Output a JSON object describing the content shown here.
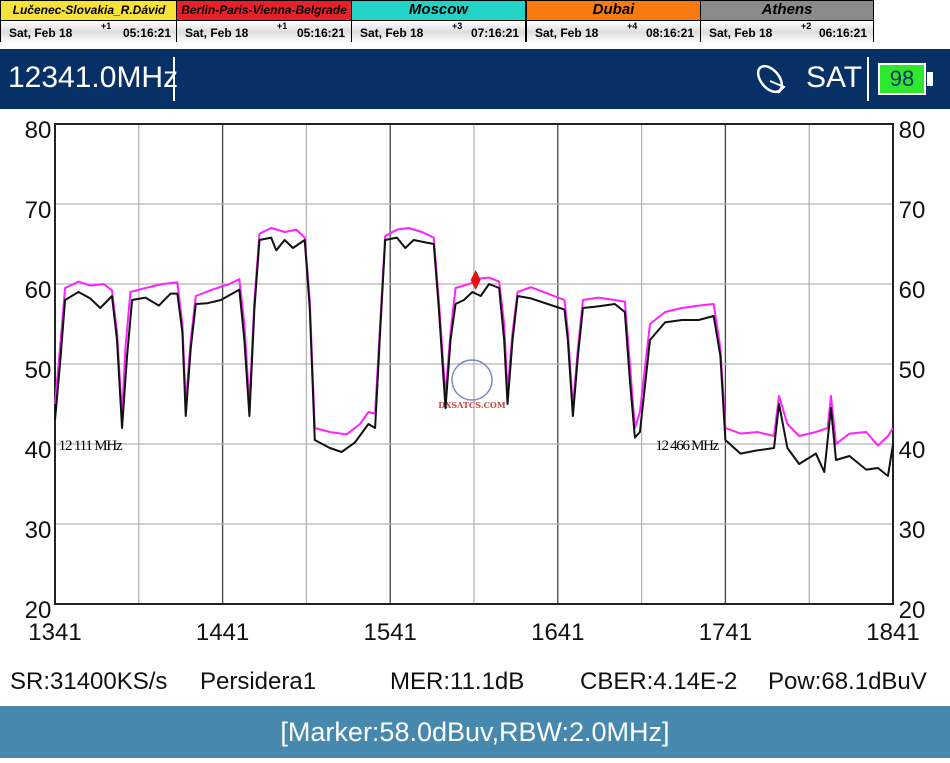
{
  "clocks": [
    {
      "city": "Lučenec-Slovakia_R.Dávid",
      "date": "Sat, Feb 18",
      "offset": "+1",
      "time": "05:16:21",
      "color": "#f6e23a",
      "text_color": "#000"
    },
    {
      "city": "Berlin-Paris-Vienna-Belgrade",
      "date": "Sat, Feb 18",
      "offset": "+1",
      "time": "05:16:21",
      "color": "#e8202a",
      "text_color": "#000"
    },
    {
      "city": "Moscow",
      "date": "Sat, Feb 18",
      "offset": "+3",
      "time": "07:16:21",
      "color": "#22d3c8",
      "text_color": "#000"
    },
    {
      "city": "Dubai",
      "date": "Sat, Feb 18",
      "offset": "+4",
      "time": "08:16:21",
      "color": "#fb7a10",
      "text_color": "#000"
    },
    {
      "city": "Athens",
      "date": "Sat, Feb 18",
      "offset": "+2",
      "time": "06:16:21",
      "color": "#8a8a8a",
      "text_color": "#000"
    }
  ],
  "header": {
    "frequency": "12341.0MHz",
    "mode": "SAT",
    "icon": "satellite-dish-icon",
    "battery": "98"
  },
  "chart_data": {
    "type": "line",
    "xlim": [
      1341,
      1841
    ],
    "ylim": [
      20,
      80
    ],
    "x_ticks": [
      "1341",
      "1441",
      "1541",
      "1641",
      "1741",
      "1841"
    ],
    "y_ticks": [
      "80",
      "70",
      "60",
      "50",
      "40",
      "30",
      "20"
    ],
    "grid": true,
    "annotations": [
      {
        "text": "12 111 MHz",
        "x": 1342,
        "y": 40
      },
      {
        "text": "12 466 MHz",
        "x": 1698,
        "y": 40
      }
    ],
    "marker": {
      "x": 1592,
      "y": 60.5,
      "color": "#e81010"
    },
    "watermark": "DXSATCS.COM",
    "series": [
      {
        "color": "#ff22ff",
        "points": [
          [
            1341,
            45
          ],
          [
            1344,
            52
          ],
          [
            1347,
            59.5
          ],
          [
            1355,
            60.3
          ],
          [
            1362,
            59.8
          ],
          [
            1370,
            60
          ],
          [
            1375,
            59.2
          ],
          [
            1378,
            54
          ],
          [
            1381,
            43.5
          ],
          [
            1383,
            52
          ],
          [
            1386,
            59
          ],
          [
            1395,
            59.5
          ],
          [
            1405,
            60
          ],
          [
            1414,
            60.2
          ],
          [
            1417,
            55
          ],
          [
            1419,
            45
          ],
          [
            1422,
            53
          ],
          [
            1425,
            58.5
          ],
          [
            1435,
            59.3
          ],
          [
            1445,
            60
          ],
          [
            1451,
            60.6
          ],
          [
            1454,
            55
          ],
          [
            1457,
            45
          ],
          [
            1460,
            58
          ],
          [
            1463,
            66.3
          ],
          [
            1470,
            67
          ],
          [
            1478,
            66.5
          ],
          [
            1485,
            66.8
          ],
          [
            1490,
            65.8
          ],
          [
            1493,
            58
          ],
          [
            1496,
            42
          ],
          [
            1505,
            41.5
          ],
          [
            1515,
            41.2
          ],
          [
            1523,
            42.5
          ],
          [
            1528,
            44
          ],
          [
            1532,
            43.8
          ],
          [
            1535,
            55
          ],
          [
            1538,
            66
          ],
          [
            1545,
            66.8
          ],
          [
            1552,
            67
          ],
          [
            1560,
            66.5
          ],
          [
            1567,
            65.8
          ],
          [
            1570,
            58
          ],
          [
            1574,
            46
          ],
          [
            1577,
            54
          ],
          [
            1580,
            59.5
          ],
          [
            1588,
            60
          ],
          [
            1595,
            60.7
          ],
          [
            1600,
            60.8
          ],
          [
            1606,
            60.3
          ],
          [
            1609,
            55
          ],
          [
            1611,
            46.5
          ],
          [
            1614,
            54
          ],
          [
            1617,
            59
          ],
          [
            1625,
            59.6
          ],
          [
            1635,
            58.8
          ],
          [
            1645,
            58
          ],
          [
            1647,
            54
          ],
          [
            1650,
            44.5
          ],
          [
            1653,
            52
          ],
          [
            1656,
            58
          ],
          [
            1665,
            58.3
          ],
          [
            1675,
            58
          ],
          [
            1681,
            57.8
          ],
          [
            1684,
            50
          ],
          [
            1687,
            42
          ],
          [
            1690,
            44
          ],
          [
            1696,
            55
          ],
          [
            1705,
            56.5
          ],
          [
            1715,
            57
          ],
          [
            1725,
            57.3
          ],
          [
            1734,
            57.5
          ],
          [
            1738,
            52
          ],
          [
            1741,
            42
          ],
          [
            1750,
            41.3
          ],
          [
            1760,
            41.5
          ],
          [
            1770,
            41
          ],
          [
            1773,
            46
          ],
          [
            1778,
            42.5
          ],
          [
            1785,
            41
          ],
          [
            1795,
            41.5
          ],
          [
            1802,
            42
          ],
          [
            1804,
            46
          ],
          [
            1807,
            40
          ],
          [
            1815,
            41.3
          ],
          [
            1825,
            41.5
          ],
          [
            1832,
            39.8
          ],
          [
            1838,
            41
          ],
          [
            1841,
            42
          ]
        ]
      },
      {
        "color": "#111111",
        "points": [
          [
            1341,
            43
          ],
          [
            1344,
            50
          ],
          [
            1347,
            58
          ],
          [
            1355,
            59
          ],
          [
            1362,
            58.2
          ],
          [
            1368,
            57
          ],
          [
            1375,
            58.5
          ],
          [
            1378,
            53
          ],
          [
            1381,
            42
          ],
          [
            1384,
            51
          ],
          [
            1387,
            58
          ],
          [
            1395,
            58.3
          ],
          [
            1403,
            57.3
          ],
          [
            1410,
            58.8
          ],
          [
            1414,
            58.8
          ],
          [
            1417,
            54
          ],
          [
            1419,
            43.5
          ],
          [
            1422,
            52
          ],
          [
            1425,
            57.5
          ],
          [
            1432,
            57.6
          ],
          [
            1440,
            58
          ],
          [
            1451,
            59.3
          ],
          [
            1454,
            53
          ],
          [
            1457,
            43.5
          ],
          [
            1460,
            57
          ],
          [
            1463,
            65.5
          ],
          [
            1470,
            65.8
          ],
          [
            1473,
            64.2
          ],
          [
            1478,
            65.5
          ],
          [
            1483,
            64.5
          ],
          [
            1490,
            65.5
          ],
          [
            1493,
            57
          ],
          [
            1496,
            40.5
          ],
          [
            1505,
            39.5
          ],
          [
            1512,
            39
          ],
          [
            1520,
            40.2
          ],
          [
            1528,
            42.5
          ],
          [
            1532,
            42
          ],
          [
            1535,
            54
          ],
          [
            1538,
            65.5
          ],
          [
            1545,
            65.8
          ],
          [
            1550,
            64.5
          ],
          [
            1555,
            65.5
          ],
          [
            1562,
            65.2
          ],
          [
            1567,
            65
          ],
          [
            1570,
            57
          ],
          [
            1574,
            44.5
          ],
          [
            1577,
            53
          ],
          [
            1580,
            57.5
          ],
          [
            1585,
            58
          ],
          [
            1590,
            59
          ],
          [
            1595,
            58.5
          ],
          [
            1600,
            60
          ],
          [
            1606,
            59.5
          ],
          [
            1609,
            53
          ],
          [
            1611,
            45
          ],
          [
            1614,
            53
          ],
          [
            1617,
            58.5
          ],
          [
            1625,
            58.2
          ],
          [
            1635,
            57.5
          ],
          [
            1645,
            56.8
          ],
          [
            1647,
            53
          ],
          [
            1650,
            43.5
          ],
          [
            1653,
            51
          ],
          [
            1656,
            57
          ],
          [
            1665,
            57.2
          ],
          [
            1675,
            57.5
          ],
          [
            1681,
            56.5
          ],
          [
            1684,
            48
          ],
          [
            1687,
            40.8
          ],
          [
            1690,
            41.5
          ],
          [
            1696,
            53
          ],
          [
            1705,
            55.2
          ],
          [
            1715,
            55.5
          ],
          [
            1725,
            55.5
          ],
          [
            1734,
            56
          ],
          [
            1738,
            51
          ],
          [
            1741,
            40.5
          ],
          [
            1750,
            38.8
          ],
          [
            1760,
            39.2
          ],
          [
            1770,
            39.5
          ],
          [
            1773,
            45
          ],
          [
            1778,
            39.5
          ],
          [
            1785,
            37.5
          ],
          [
            1795,
            38.8
          ],
          [
            1800,
            36.5
          ],
          [
            1804,
            44.5
          ],
          [
            1807,
            38
          ],
          [
            1815,
            38.5
          ],
          [
            1825,
            36.8
          ],
          [
            1832,
            37
          ],
          [
            1838,
            36
          ],
          [
            1841,
            40
          ]
        ]
      }
    ]
  },
  "status": {
    "sr": "SR:31400KS/s",
    "name": "Persidera1",
    "mer": "MER:11.1dB",
    "cber": "CBER:4.14E-2",
    "pow": "Pow:68.1dBuV"
  },
  "footer": {
    "text": "[Marker:58.0dBuv,RBW:2.0MHz]"
  }
}
